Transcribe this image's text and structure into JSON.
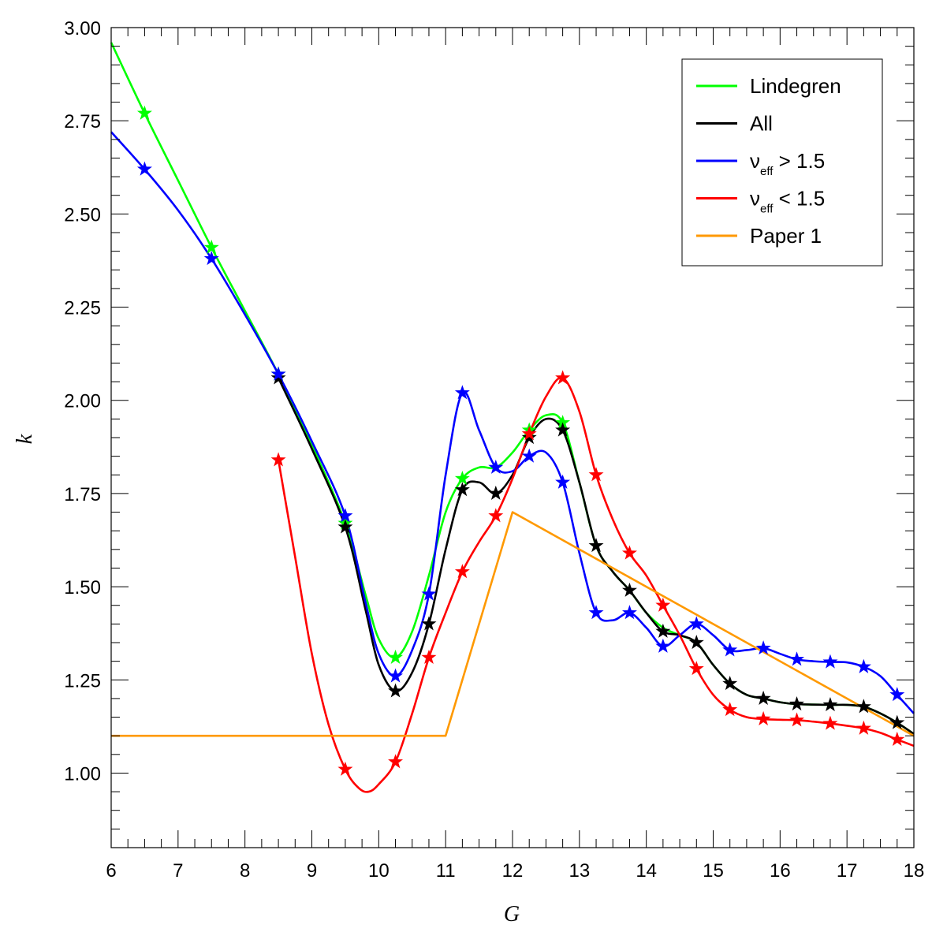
{
  "chart_data": {
    "type": "line",
    "title": "",
    "xlabel": "G",
    "ylabel": "k",
    "xlim": [
      6,
      18
    ],
    "ylim": [
      0.8,
      3.0
    ],
    "x_ticks": [
      6,
      7,
      8,
      9,
      10,
      11,
      12,
      13,
      14,
      15,
      16,
      17,
      18
    ],
    "x_tick_labels": [
      "6",
      "7",
      "8",
      "9",
      "10",
      "11",
      "12",
      "13",
      "14",
      "15",
      "16",
      "17",
      "18"
    ],
    "y_ticks": [
      1.0,
      1.25,
      1.5,
      1.75,
      2.0,
      2.25,
      2.5,
      2.75,
      3.0
    ],
    "y_tick_labels": [
      "1.00",
      "1.25",
      "1.50",
      "1.75",
      "2.00",
      "2.25",
      "2.50",
      "2.75",
      "3.00"
    ],
    "legend_position": "top-right",
    "series": [
      {
        "name": "Lindegren",
        "color": "#00ff00",
        "curve": [
          [
            6.0,
            2.96
          ],
          [
            6.5,
            2.77
          ],
          [
            7.0,
            2.59
          ],
          [
            7.5,
            2.41
          ],
          [
            8.0,
            2.24
          ],
          [
            8.5,
            2.07
          ],
          [
            9.0,
            1.88
          ],
          [
            9.5,
            1.67
          ],
          [
            9.8,
            1.48
          ],
          [
            10.0,
            1.36
          ],
          [
            10.25,
            1.31
          ],
          [
            10.5,
            1.38
          ],
          [
            10.75,
            1.53
          ],
          [
            11.0,
            1.7
          ],
          [
            11.25,
            1.79
          ],
          [
            11.5,
            1.82
          ],
          [
            11.75,
            1.82
          ],
          [
            12.0,
            1.86
          ],
          [
            12.25,
            1.92
          ],
          [
            12.5,
            1.96
          ],
          [
            12.75,
            1.94
          ],
          [
            13.0,
            1.78
          ],
          [
            13.25,
            1.61
          ],
          [
            13.5,
            1.54
          ],
          [
            13.75,
            1.49
          ],
          [
            14.0,
            1.43
          ],
          [
            14.25,
            1.39
          ],
          [
            14.5,
            1.37
          ],
          [
            14.75,
            1.35
          ],
          [
            15.0,
            1.29
          ],
          [
            15.25,
            1.24
          ],
          [
            15.5,
            1.21
          ],
          [
            15.75,
            1.2
          ],
          [
            16.0,
            1.19
          ],
          [
            16.25,
            1.185
          ],
          [
            16.75,
            1.183
          ],
          [
            17.0,
            1.183
          ],
          [
            17.25,
            1.178
          ],
          [
            17.5,
            1.16
          ],
          [
            17.75,
            1.135
          ],
          [
            18.0,
            1.105
          ]
        ],
        "markers": [
          [
            6.5,
            2.77
          ],
          [
            7.5,
            2.41
          ],
          [
            8.5,
            2.07
          ],
          [
            9.5,
            1.67
          ],
          [
            10.25,
            1.31
          ],
          [
            11.25,
            1.79
          ],
          [
            12.25,
            1.92
          ],
          [
            12.75,
            1.94
          ]
        ]
      },
      {
        "name": "All",
        "color": "#000000",
        "curve": [
          [
            8.5,
            2.06
          ],
          [
            9.0,
            1.87
          ],
          [
            9.5,
            1.66
          ],
          [
            9.8,
            1.44
          ],
          [
            10.0,
            1.29
          ],
          [
            10.25,
            1.22
          ],
          [
            10.5,
            1.27
          ],
          [
            10.75,
            1.4
          ],
          [
            11.0,
            1.6
          ],
          [
            11.25,
            1.76
          ],
          [
            11.5,
            1.78
          ],
          [
            11.75,
            1.75
          ],
          [
            12.0,
            1.8
          ],
          [
            12.25,
            1.9
          ],
          [
            12.5,
            1.95
          ],
          [
            12.75,
            1.92
          ],
          [
            13.0,
            1.78
          ],
          [
            13.25,
            1.61
          ],
          [
            13.5,
            1.54
          ],
          [
            13.75,
            1.49
          ],
          [
            14.0,
            1.43
          ],
          [
            14.25,
            1.38
          ],
          [
            14.5,
            1.37
          ],
          [
            14.75,
            1.35
          ],
          [
            15.0,
            1.29
          ],
          [
            15.25,
            1.24
          ],
          [
            15.5,
            1.21
          ],
          [
            15.75,
            1.2
          ],
          [
            16.0,
            1.19
          ],
          [
            16.25,
            1.185
          ],
          [
            16.75,
            1.183
          ],
          [
            17.0,
            1.183
          ],
          [
            17.25,
            1.178
          ],
          [
            17.5,
            1.16
          ],
          [
            17.75,
            1.135
          ],
          [
            18.0,
            1.105
          ]
        ],
        "markers": [
          [
            8.5,
            2.06
          ],
          [
            9.5,
            1.66
          ],
          [
            10.25,
            1.22
          ],
          [
            10.75,
            1.4
          ],
          [
            11.25,
            1.76
          ],
          [
            11.75,
            1.75
          ],
          [
            12.25,
            1.9
          ],
          [
            12.75,
            1.92
          ],
          [
            13.25,
            1.61
          ],
          [
            13.75,
            1.49
          ],
          [
            14.25,
            1.38
          ],
          [
            14.75,
            1.35
          ],
          [
            15.25,
            1.24
          ],
          [
            15.75,
            1.2
          ],
          [
            16.25,
            1.185
          ],
          [
            16.75,
            1.183
          ],
          [
            17.25,
            1.178
          ],
          [
            17.75,
            1.135
          ]
        ]
      },
      {
        "name": "ν_eff > 1.5",
        "color": "#0000ff",
        "curve": [
          [
            6.0,
            2.72
          ],
          [
            6.5,
            2.62
          ],
          [
            7.0,
            2.51
          ],
          [
            7.5,
            2.38
          ],
          [
            8.0,
            2.23
          ],
          [
            8.5,
            2.07
          ],
          [
            9.0,
            1.89
          ],
          [
            9.5,
            1.69
          ],
          [
            9.8,
            1.46
          ],
          [
            10.0,
            1.32
          ],
          [
            10.25,
            1.26
          ],
          [
            10.5,
            1.33
          ],
          [
            10.75,
            1.48
          ],
          [
            11.0,
            1.8
          ],
          [
            11.25,
            2.02
          ],
          [
            11.5,
            1.92
          ],
          [
            11.75,
            1.82
          ],
          [
            12.0,
            1.81
          ],
          [
            12.25,
            1.85
          ],
          [
            12.5,
            1.86
          ],
          [
            12.75,
            1.78
          ],
          [
            13.0,
            1.59
          ],
          [
            13.25,
            1.43
          ],
          [
            13.5,
            1.41
          ],
          [
            13.75,
            1.43
          ],
          [
            14.0,
            1.39
          ],
          [
            14.25,
            1.34
          ],
          [
            14.5,
            1.37
          ],
          [
            14.75,
            1.4
          ],
          [
            15.0,
            1.37
          ],
          [
            15.25,
            1.33
          ],
          [
            15.5,
            1.33
          ],
          [
            15.75,
            1.335
          ],
          [
            16.0,
            1.32
          ],
          [
            16.25,
            1.305
          ],
          [
            16.5,
            1.3
          ],
          [
            16.75,
            1.298
          ],
          [
            17.0,
            1.297
          ],
          [
            17.25,
            1.285
          ],
          [
            17.5,
            1.26
          ],
          [
            17.75,
            1.21
          ],
          [
            18.0,
            1.16
          ]
        ],
        "markers": [
          [
            6.5,
            2.62
          ],
          [
            7.5,
            2.38
          ],
          [
            8.5,
            2.07
          ],
          [
            9.5,
            1.69
          ],
          [
            10.25,
            1.26
          ],
          [
            10.75,
            1.48
          ],
          [
            11.25,
            2.02
          ],
          [
            11.75,
            1.82
          ],
          [
            12.25,
            1.85
          ],
          [
            12.75,
            1.78
          ],
          [
            13.25,
            1.43
          ],
          [
            13.75,
            1.43
          ],
          [
            14.25,
            1.34
          ],
          [
            14.75,
            1.4
          ],
          [
            15.25,
            1.33
          ],
          [
            15.75,
            1.335
          ],
          [
            16.25,
            1.305
          ],
          [
            16.75,
            1.298
          ],
          [
            17.25,
            1.285
          ],
          [
            17.75,
            1.21
          ]
        ]
      },
      {
        "name": "ν_eff < 1.5",
        "color": "#ff0000",
        "curve": [
          [
            8.5,
            1.84
          ],
          [
            8.75,
            1.58
          ],
          [
            9.0,
            1.32
          ],
          [
            9.25,
            1.13
          ],
          [
            9.5,
            1.01
          ],
          [
            9.7,
            0.96
          ],
          [
            9.85,
            0.95
          ],
          [
            10.0,
            0.97
          ],
          [
            10.25,
            1.03
          ],
          [
            10.5,
            1.16
          ],
          [
            10.75,
            1.31
          ],
          [
            11.0,
            1.43
          ],
          [
            11.25,
            1.54
          ],
          [
            11.5,
            1.62
          ],
          [
            11.75,
            1.69
          ],
          [
            12.0,
            1.79
          ],
          [
            12.25,
            1.91
          ],
          [
            12.5,
            2.01
          ],
          [
            12.75,
            2.06
          ],
          [
            13.0,
            1.97
          ],
          [
            13.25,
            1.8
          ],
          [
            13.5,
            1.68
          ],
          [
            13.75,
            1.59
          ],
          [
            14.0,
            1.53
          ],
          [
            14.25,
            1.45
          ],
          [
            14.5,
            1.37
          ],
          [
            14.75,
            1.28
          ],
          [
            15.0,
            1.21
          ],
          [
            15.25,
            1.17
          ],
          [
            15.5,
            1.15
          ],
          [
            15.75,
            1.145
          ],
          [
            16.0,
            1.143
          ],
          [
            16.25,
            1.142
          ],
          [
            16.5,
            1.138
          ],
          [
            16.75,
            1.133
          ],
          [
            17.0,
            1.127
          ],
          [
            17.25,
            1.12
          ],
          [
            17.5,
            1.108
          ],
          [
            17.75,
            1.09
          ],
          [
            18.0,
            1.073
          ]
        ],
        "markers": [
          [
            8.5,
            1.84
          ],
          [
            9.5,
            1.01
          ],
          [
            10.25,
            1.03
          ],
          [
            10.75,
            1.31
          ],
          [
            11.25,
            1.54
          ],
          [
            11.75,
            1.69
          ],
          [
            12.25,
            1.91
          ],
          [
            12.75,
            2.06
          ],
          [
            13.25,
            1.8
          ],
          [
            13.75,
            1.59
          ],
          [
            14.25,
            1.45
          ],
          [
            14.75,
            1.28
          ],
          [
            15.25,
            1.17
          ],
          [
            15.75,
            1.145
          ],
          [
            16.25,
            1.142
          ],
          [
            16.75,
            1.133
          ],
          [
            17.25,
            1.12
          ],
          [
            17.75,
            1.09
          ]
        ]
      },
      {
        "name": "Paper 1",
        "color": "#ff9900",
        "curve": [
          [
            6.0,
            1.1
          ],
          [
            11.0,
            1.1
          ],
          [
            12.0,
            1.7
          ],
          [
            18.0,
            1.1
          ]
        ],
        "markers": []
      }
    ],
    "legend": [
      {
        "label": "Lindegren",
        "sub": "",
        "rest": "",
        "color": "#00ff00"
      },
      {
        "label": "All",
        "sub": "",
        "rest": "",
        "color": "#000000"
      },
      {
        "label": "ν",
        "sub": "eff",
        "rest": " > 1.5",
        "color": "#0000ff"
      },
      {
        "label": "ν",
        "sub": "eff",
        "rest": " < 1.5",
        "color": "#ff0000"
      },
      {
        "label": "Paper 1",
        "sub": "",
        "rest": "",
        "color": "#ff9900"
      }
    ]
  }
}
